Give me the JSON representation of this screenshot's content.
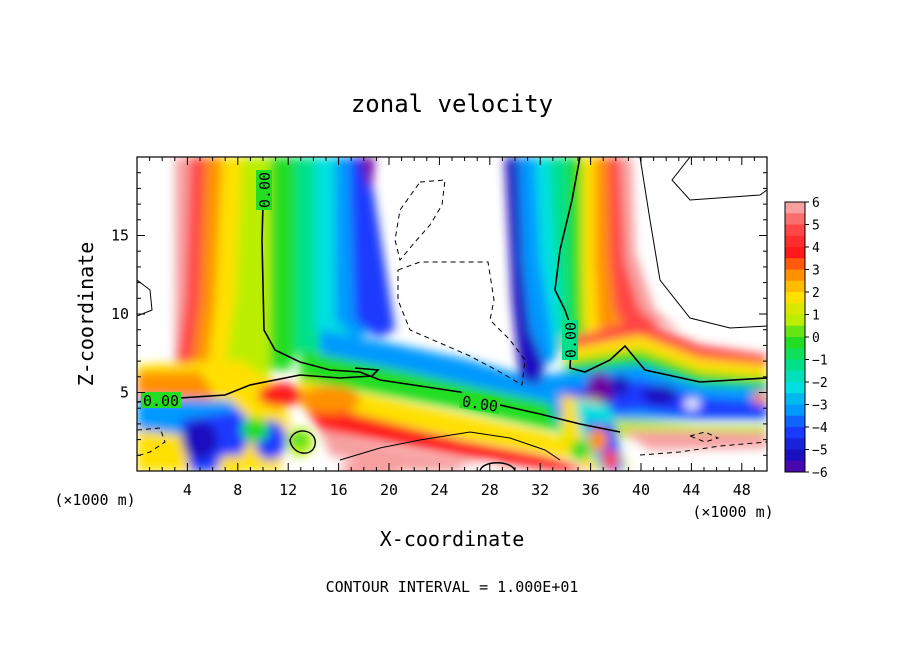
{
  "chart_data": {
    "type": "heatmap",
    "title": "zonal velocity",
    "xlabel": "X-coordinate",
    "ylabel": "Z-coordinate",
    "x_unit": "(×1000 m)",
    "x_unit_right": "(×1000 m)",
    "xlim": [
      0,
      50
    ],
    "ylim": [
      0,
      20
    ],
    "x_ticks": [
      "4",
      "8",
      "12",
      "16",
      "20",
      "24",
      "28",
      "32",
      "36",
      "40",
      "44",
      "48"
    ],
    "y_ticks": [
      "5",
      "10",
      "15"
    ],
    "colorbar": {
      "range": [
        -6,
        6
      ],
      "ticks": [
        "6",
        "5",
        "4",
        "3",
        "2",
        "1",
        "0",
        "−1",
        "−2",
        "−3",
        "−4",
        "−5",
        "−6"
      ]
    },
    "contour_labels": [
      "0.00",
      "0.00",
      "0.00",
      "0.00"
    ],
    "contour_interval_note": "CONTOUR INTERVAL = 1.000E+01",
    "colors": {
      "pos6": "#f6a0a0",
      "pos5": "#ff4545",
      "pos4": "#ff1a1a",
      "pos3": "#ff9000",
      "pos2": "#ffe000",
      "pos1": "#bbee00",
      "zero": "#22dd22",
      "neg1": "#00e08a",
      "neg2": "#00e0e0",
      "neg3": "#0099ff",
      "neg4": "#1a3aff",
      "neg5": "#1a10c0",
      "neg6": "#7000a0"
    }
  }
}
